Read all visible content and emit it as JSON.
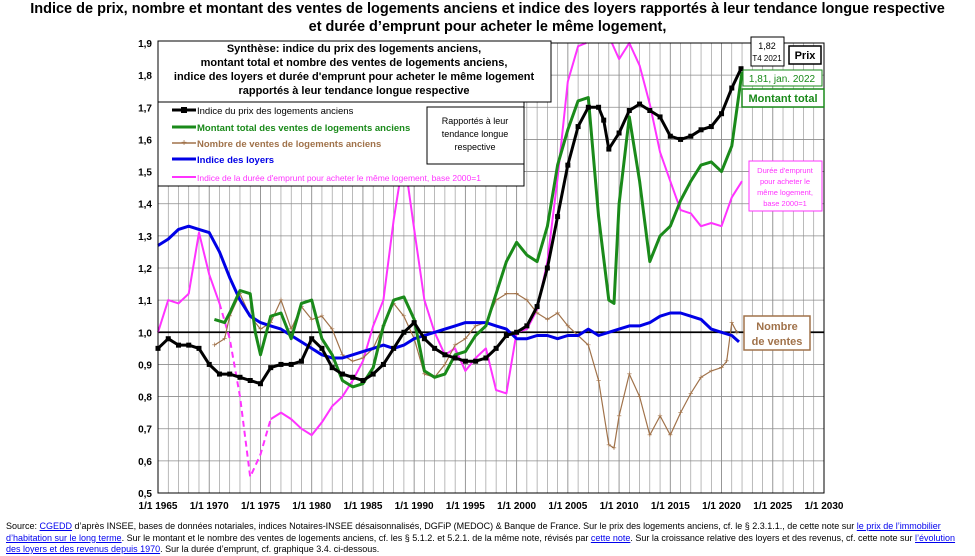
{
  "title": {
    "line1": "Indice de prix, nombre et montant des ventes de logements anciens et indice des loyers rapportés à leur tendance longue respective",
    "line2": "et durée d’emprunt pour acheter le même logement,"
  },
  "synthese_box": [
    "Synthèse: indice du prix des logements anciens,",
    "montant total et nombre des ventes de logements anciens,",
    "indice des loyers et durée d'emprunt pour acheter le même logement",
    "rapportés à leur tendance longue respective"
  ],
  "rapportes_box": [
    "Rapportés à leur",
    "tendance longue",
    "respective"
  ],
  "annotations": {
    "prix_value": "1,82",
    "prix_date": "T4 2021",
    "prix_label": "Prix",
    "montant_value": "1,81, jan. 2022",
    "montant_label": "Montant total",
    "nombre_label_1": "Nombre",
    "nombre_label_2": "de ventes",
    "duree_label": [
      "Durée d'emprunt",
      "pour acheter le",
      "même logement,",
      "base 2000=1"
    ]
  },
  "footer": {
    "parts": [
      {
        "t": "Source: "
      },
      {
        "t": "CGEDD",
        "link": true
      },
      {
        "t": " d’après INSEE, bases de données notariales, indices Notaires-INSEE désaisonnalisés, DGFiP (MEDOC) & Banque de France.  Sur le prix des logements anciens, cf. le §  2.3.1.1., de cette note sur "
      },
      {
        "t": "le prix de l’immobilier d’habitation sur le long terme",
        "link": true
      },
      {
        "t": ".  Sur le montant et le nombre des ventes de logements anciens, cf. les § 5.1.2. et 5.2.1. de la même note, révisés par "
      },
      {
        "t": "cette note",
        "link": true
      },
      {
        "t": ".  Sur la croissance relative des loyers et des revenus, cf. cette note sur "
      },
      {
        "t": "l’évolution des loyers et des revenus depuis 1970",
        "link": true
      },
      {
        "t": ".  Sur la durée d’emprunt, cf. graphique 3.4. ci-dessous."
      }
    ]
  },
  "colors": {
    "prix": "#000000",
    "montant": "#1a8a1a",
    "nombre": "#a0724a",
    "loyers": "#0000e6",
    "duree": "#ff33ff",
    "grid": "#8c8c8c"
  },
  "chart_data": {
    "type": "line",
    "xlim": [
      1965,
      2030
    ],
    "ylim": [
      0.5,
      1.9
    ],
    "x_ticks": [
      "1/1 1965",
      "1/1 1970",
      "1/1 1975",
      "1/1 1980",
      "1/1 1985",
      "1/1 1990",
      "1/1 1995",
      "1/1 2000",
      "1/1 2005",
      "1/1 2010",
      "1/1 2015",
      "1/1 2020",
      "1/1 2025",
      "1/1 2030"
    ],
    "y_ticks": [
      "0,5",
      "0,6",
      "0,7",
      "0,8",
      "0,9",
      "1,0",
      "1,1",
      "1,2",
      "1,3",
      "1,4",
      "1,5",
      "1,6",
      "1,7",
      "1,8",
      "1,9"
    ],
    "reference_line": 1.0,
    "series": [
      {
        "key": "prix",
        "name": "Indice du prix des logements anciens",
        "style": "line-square",
        "x": [
          1965,
          1966,
          1967,
          1968,
          1969,
          1970,
          1971,
          1972,
          1973,
          1974,
          1975,
          1976,
          1977,
          1978,
          1979,
          1980,
          1981,
          1982,
          1983,
          1984,
          1985,
          1986,
          1987,
          1988,
          1989,
          1990,
          1991,
          1992,
          1993,
          1994,
          1995,
          1996,
          1997,
          1998,
          1999,
          2000,
          2001,
          2002,
          2003,
          2004,
          2005,
          2006,
          2007,
          2008,
          2008.5,
          2009,
          2010,
          2011,
          2012,
          2013,
          2014,
          2015,
          2016,
          2017,
          2018,
          2019,
          2020,
          2021,
          2021.9
        ],
        "y": [
          0.95,
          0.98,
          0.96,
          0.96,
          0.95,
          0.9,
          0.87,
          0.87,
          0.86,
          0.85,
          0.84,
          0.89,
          0.9,
          0.9,
          0.91,
          0.98,
          0.95,
          0.89,
          0.87,
          0.86,
          0.85,
          0.87,
          0.9,
          0.95,
          1.0,
          1.03,
          0.98,
          0.95,
          0.93,
          0.92,
          0.91,
          0.91,
          0.92,
          0.95,
          0.99,
          1.0,
          1.02,
          1.08,
          1.2,
          1.36,
          1.52,
          1.64,
          1.7,
          1.7,
          1.66,
          1.57,
          1.62,
          1.69,
          1.71,
          1.69,
          1.67,
          1.61,
          1.6,
          1.61,
          1.63,
          1.64,
          1.68,
          1.76,
          1.82
        ]
      },
      {
        "key": "montant",
        "name": "Montant total des ventes de logements anciens",
        "style": "line",
        "x": [
          1970.5,
          1971.5,
          1972,
          1973,
          1974,
          1974.5,
          1975,
          1976,
          1977,
          1978,
          1979,
          1980,
          1981,
          1982,
          1983,
          1984,
          1985,
          1986,
          1987,
          1988,
          1989,
          1990,
          1991,
          1992,
          1993,
          1994,
          1995,
          1996,
          1997,
          1998,
          1999,
          2000,
          2001,
          2002,
          2003,
          2004,
          2005,
          2006,
          2007,
          2008,
          2009,
          2009.5,
          2010,
          2011,
          2012,
          2013,
          2014,
          2015,
          2016,
          2017,
          2018,
          2019,
          2020,
          2021,
          2022
        ],
        "y": [
          1.04,
          1.03,
          1.06,
          1.13,
          1.12,
          1.0,
          0.93,
          1.05,
          1.06,
          0.98,
          1.09,
          1.1,
          0.98,
          0.93,
          0.85,
          0.83,
          0.84,
          0.89,
          1.02,
          1.1,
          1.11,
          1.04,
          0.88,
          0.86,
          0.87,
          0.93,
          0.94,
          0.99,
          1.02,
          1.12,
          1.22,
          1.28,
          1.24,
          1.22,
          1.33,
          1.52,
          1.63,
          1.72,
          1.73,
          1.36,
          1.1,
          1.09,
          1.4,
          1.67,
          1.47,
          1.22,
          1.3,
          1.33,
          1.41,
          1.47,
          1.52,
          1.53,
          1.5,
          1.58,
          1.81
        ]
      },
      {
        "key": "nombre",
        "name": "Nombre de ventes de logements anciens",
        "style": "line-plus",
        "x": [
          1970.5,
          1971.5,
          1972,
          1973,
          1974,
          1975,
          1976,
          1977,
          1978,
          1979,
          1980,
          1981,
          1982,
          1983,
          1984,
          1985,
          1986,
          1987,
          1988,
          1989,
          1990,
          1991,
          1992,
          1993,
          1994,
          1995,
          1996,
          1997,
          1998,
          1999,
          2000,
          2001,
          2002,
          2003,
          2004,
          2005,
          2006,
          2007,
          2008,
          2009,
          2009.5,
          2010,
          2011,
          2012,
          2013,
          2014,
          2015,
          2016,
          2017,
          2018,
          2019,
          2020,
          2020.5,
          2021,
          2021.5
        ],
        "y": [
          0.96,
          0.98,
          1.05,
          1.12,
          1.05,
          1.01,
          1.03,
          1.1,
          1.01,
          1.08,
          1.04,
          1.05,
          1.01,
          0.93,
          0.91,
          0.92,
          0.95,
          1.02,
          1.09,
          1.05,
          0.98,
          0.87,
          0.86,
          0.9,
          0.96,
          0.98,
          1.02,
          1.03,
          1.1,
          1.12,
          1.12,
          1.1,
          1.06,
          1.04,
          1.06,
          1.02,
          0.99,
          0.96,
          0.85,
          0.65,
          0.64,
          0.74,
          0.87,
          0.8,
          0.68,
          0.74,
          0.68,
          0.75,
          0.81,
          0.86,
          0.88,
          0.89,
          0.91,
          1.03,
          1.0
        ]
      },
      {
        "key": "loyers",
        "name": "Indice des loyers",
        "style": "line",
        "x": [
          1965,
          1966,
          1967,
          1968,
          1969,
          1970,
          1971,
          1972,
          1973,
          1974,
          1975,
          1976,
          1977,
          1978,
          1979,
          1980,
          1981,
          1982,
          1983,
          1984,
          1985,
          1986,
          1987,
          1988,
          1989,
          1990,
          1991,
          1992,
          1993,
          1994,
          1995,
          1996,
          1997,
          1998,
          1999,
          2000,
          2001,
          2002,
          2003,
          2004,
          2005,
          2006,
          2007,
          2008,
          2009,
          2010,
          2011,
          2012,
          2013,
          2014,
          2015,
          2016,
          2017,
          2018,
          2019,
          2020,
          2021,
          2021.7
        ],
        "y": [
          1.27,
          1.29,
          1.32,
          1.33,
          1.32,
          1.31,
          1.25,
          1.17,
          1.1,
          1.05,
          1.03,
          1.02,
          1.01,
          0.99,
          0.97,
          0.95,
          0.93,
          0.92,
          0.92,
          0.93,
          0.94,
          0.95,
          0.96,
          0.95,
          0.96,
          0.98,
          0.99,
          1.0,
          1.01,
          1.02,
          1.03,
          1.03,
          1.03,
          1.02,
          1.01,
          0.98,
          0.98,
          0.99,
          0.99,
          0.98,
          0.99,
          0.99,
          1.01,
          0.99,
          1.0,
          1.01,
          1.02,
          1.02,
          1.03,
          1.05,
          1.06,
          1.06,
          1.05,
          1.04,
          1.01,
          1.0,
          0.99,
          0.97
        ]
      },
      {
        "key": "duree",
        "name": "Indice de la durée d'emprunt pour acheter le même logement, base 2000=1",
        "style": "segmented",
        "segments": [
          {
            "dash": false,
            "x": [
              1965,
              1966,
              1967,
              1968,
              1969,
              1970,
              1971
            ],
            "y": [
              1.0,
              1.1,
              1.09,
              1.12,
              1.31,
              1.18,
              1.09
            ]
          },
          {
            "dash": true,
            "x": [
              1971,
              1972,
              1973,
              1974,
              1975,
              1976
            ],
            "y": [
              1.09,
              0.98,
              0.8,
              0.55,
              0.62,
              0.73
            ]
          },
          {
            "dash": false,
            "x": [
              1976,
              1977,
              1978,
              1979,
              1980,
              1981,
              1982,
              1983,
              1984,
              1985,
              1986,
              1987,
              1988,
              1989,
              1990,
              1991,
              1992,
              1993,
              1994,
              1995,
              1996,
              1997,
              1998,
              1999,
              2000,
              2001,
              2002,
              2003,
              2004,
              2005,
              2006,
              2006.8
            ],
            "y": [
              0.73,
              0.75,
              0.73,
              0.7,
              0.68,
              0.72,
              0.77,
              0.8,
              0.85,
              0.91,
              1.02,
              1.1,
              1.35,
              1.55,
              1.32,
              1.1,
              1.0,
              0.93,
              0.95,
              0.88,
              0.92,
              0.95,
              0.82,
              0.81,
              1.0,
              1.01,
              1.07,
              1.22,
              1.48,
              1.78,
              1.89,
              1.9
            ]
          },
          {
            "dash": false,
            "x": [
              2009.3,
              2010,
              2011,
              2012,
              2013,
              2014,
              2015,
              2016,
              2017,
              2018,
              2019,
              2020,
              2021,
              2022
            ],
            "y": [
              1.9,
              1.85,
              1.9,
              1.83,
              1.71,
              1.56,
              1.47,
              1.38,
              1.37,
              1.33,
              1.34,
              1.33,
              1.42,
              1.47
            ]
          }
        ]
      }
    ]
  }
}
